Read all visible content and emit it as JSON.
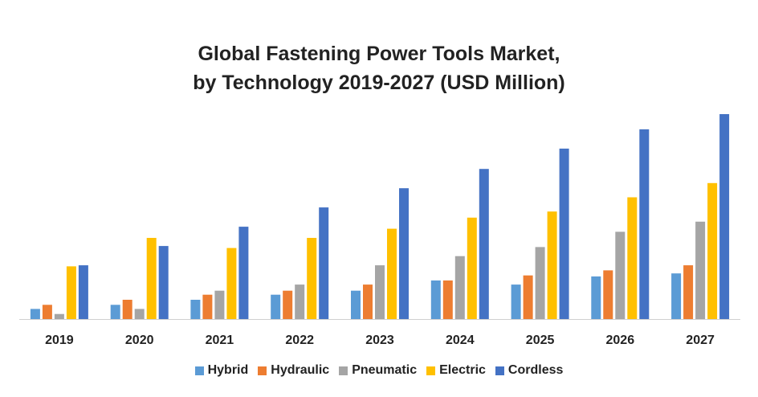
{
  "chart_data": {
    "type": "bar",
    "title": "Global Fastening Power Tools Market,",
    "subtitle": "by Technology 2019-2027 (USD Million)",
    "xlabel": "",
    "ylabel": "",
    "ylim": [
      0,
      100
    ],
    "grid": false,
    "legend_position": "bottom",
    "categories": [
      "2019",
      "2020",
      "2021",
      "2022",
      "2023",
      "2024",
      "2025",
      "2026",
      "2027"
    ],
    "series": [
      {
        "name": "Hybrid",
        "color": "#5B9BD5",
        "values": [
          5,
          7,
          9.5,
          12,
          14,
          19,
          17,
          21,
          22.5
        ]
      },
      {
        "name": "Hydraulic",
        "color": "#ED7D31",
        "values": [
          7,
          9.5,
          12,
          14,
          17,
          19,
          21.5,
          24,
          26.5
        ]
      },
      {
        "name": "Pneumatic",
        "color": "#A5A5A5",
        "values": [
          2.5,
          5,
          14,
          17,
          26.5,
          31,
          35.5,
          43,
          48
        ]
      },
      {
        "name": "Electric",
        "color": "#FFC000",
        "values": [
          26,
          40,
          35,
          40,
          44.5,
          50,
          53,
          60,
          67
        ]
      },
      {
        "name": "Cordless",
        "color": "#4472C4",
        "values": [
          26.5,
          36,
          45.5,
          55,
          64.5,
          74,
          84,
          93.5,
          101
        ]
      }
    ]
  }
}
